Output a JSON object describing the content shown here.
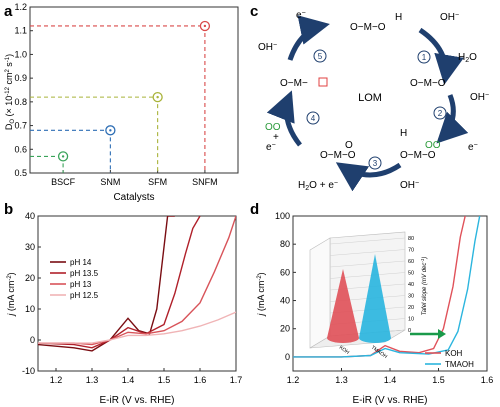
{
  "panels": {
    "a": {
      "label": "a"
    },
    "b": {
      "label": "b"
    },
    "c": {
      "label": "c"
    },
    "d": {
      "label": "d"
    }
  },
  "chart_data": [
    {
      "id": "a",
      "type": "scatter",
      "xlabel": "Catalysts",
      "ylabel": "D",
      "ylabel_sub": "O",
      "ylabel_rest": " (× 10",
      "ylabel_sup": "-12",
      "ylabel_tail": " cm",
      "ylabel_sup2": "2",
      "ylabel_end": " s",
      "ylabel_sup3": "-1",
      "ylabel_close": ")",
      "categories": [
        "BSCF",
        "SNM",
        "SFM",
        "SNFM"
      ],
      "values": [
        0.57,
        0.68,
        0.82,
        1.12
      ],
      "colors": [
        "#3aa35a",
        "#2f6fb5",
        "#a9b33a",
        "#d94a4a"
      ],
      "ylim": [
        0.5,
        1.2
      ],
      "yticks": [
        "0.5",
        "0.6",
        "0.7",
        "0.8",
        "0.9",
        "1.0",
        "1.1",
        "1.2"
      ],
      "guide_lines": "dashed",
      "grid": false
    },
    {
      "id": "b",
      "type": "line",
      "xlabel": "E-iR (V vs. RHE)",
      "ylabel_italic": "j",
      "ylabel_rest": " (mA cm",
      "ylabel_sup": "-2",
      "ylabel_close": ")",
      "xlim": [
        1.15,
        1.7
      ],
      "ylim": [
        -10,
        40
      ],
      "xticks": [
        "1.2",
        "1.3",
        "1.4",
        "1.5",
        "1.6",
        "1.7"
      ],
      "yticks": [
        "-10",
        "0",
        "10",
        "20",
        "30",
        "40"
      ],
      "legend_position": "upper-left",
      "series": [
        {
          "name": "pH 14",
          "color": "#7a0d12",
          "x": [
            1.15,
            1.25,
            1.3,
            1.35,
            1.4,
            1.43,
            1.46,
            1.48,
            1.5,
            1.51,
            1.52,
            1.53
          ],
          "y": [
            -1.5,
            -2.5,
            -3.5,
            0,
            7,
            3,
            2,
            10,
            30,
            40,
            40,
            40
          ]
        },
        {
          "name": "pH 13.5",
          "color": "#b0202a",
          "x": [
            1.15,
            1.25,
            1.3,
            1.35,
            1.4,
            1.45,
            1.5,
            1.53,
            1.56,
            1.58,
            1.6
          ],
          "y": [
            -1,
            -1.5,
            -2.5,
            0,
            4,
            2,
            5,
            15,
            28,
            36,
            40
          ]
        },
        {
          "name": "pH 13",
          "color": "#d8545a",
          "x": [
            1.15,
            1.25,
            1.3,
            1.35,
            1.4,
            1.45,
            1.5,
            1.55,
            1.6,
            1.64,
            1.68,
            1.7
          ],
          "y": [
            -1,
            -1,
            -1.5,
            0,
            2.5,
            2,
            3,
            6,
            12,
            22,
            33,
            40
          ]
        },
        {
          "name": "pH 12.5",
          "color": "#f0b4b6",
          "x": [
            1.15,
            1.25,
            1.3,
            1.35,
            1.4,
            1.45,
            1.5,
            1.55,
            1.6,
            1.65,
            1.7
          ],
          "y": [
            -1,
            -1,
            -1,
            0,
            1.5,
            1.5,
            2,
            3,
            4.5,
            6.5,
            9
          ]
        }
      ]
    },
    {
      "id": "d",
      "type": "line",
      "xlabel": "E-iR (V vs. RHE)",
      "ylabel_italic": "j",
      "ylabel_rest": " (mA cm",
      "ylabel_sup": "-2",
      "ylabel_close": ")",
      "xlim": [
        1.2,
        1.6
      ],
      "ylim": [
        -10,
        100
      ],
      "xticks": [
        "1.2",
        "1.3",
        "1.4",
        "1.5",
        "1.6"
      ],
      "yticks": [
        "0",
        "20",
        "40",
        "60",
        "80",
        "100"
      ],
      "legend_position": "lower-right",
      "series": [
        {
          "name": "KOH",
          "color": "#e0525a",
          "x": [
            1.2,
            1.3,
            1.36,
            1.39,
            1.42,
            1.46,
            1.49,
            1.51,
            1.53,
            1.545,
            1.555
          ],
          "y": [
            0,
            0,
            1,
            8,
            4,
            3,
            6,
            20,
            50,
            85,
            100
          ]
        },
        {
          "name": "TMAOH",
          "color": "#2bb5de",
          "x": [
            1.2,
            1.3,
            1.36,
            1.39,
            1.42,
            1.48,
            1.52,
            1.54,
            1.56,
            1.575,
            1.585
          ],
          "y": [
            0,
            0,
            1,
            6,
            3,
            2,
            5,
            18,
            48,
            82,
            100
          ]
        }
      ],
      "inset": {
        "type": "bar3d",
        "ylabel": "Tafel slope (mV dec",
        "ylabel_sup": "-1",
        "ylabel_close": ")",
        "yticks": [
          "0",
          "10",
          "20",
          "30",
          "40",
          "50",
          "60",
          "70",
          "80"
        ],
        "ylim": [
          0,
          80
        ],
        "categories": [
          "KOH",
          "TMAOH"
        ],
        "values": [
          60,
          73
        ],
        "colors": [
          "#e0525a",
          "#2bb5de"
        ]
      }
    }
  ],
  "diagram_c": {
    "center_label": "LOM",
    "step_labels": [
      "1",
      "2",
      "3",
      "4",
      "5"
    ],
    "species": {
      "top_chain": "O−M−O",
      "top_h": "H",
      "right_chain": "O−M−O",
      "bottom_chain_left": "O−M−O",
      "bottom_chain_right": "O−M−O",
      "left_chain": "O−M−",
      "oh": "OH",
      "minus": "−",
      "h2o": "H",
      "h2o_sub": "2",
      "h2o_tail": "O",
      "e": "e",
      "h": "H",
      "oo": "OO",
      "o": "O",
      "plus": "+",
      "h2o_plus_e": "O + e"
    }
  }
}
